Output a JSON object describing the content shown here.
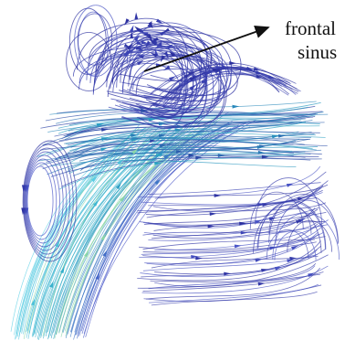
{
  "annotation": {
    "line1": "frontal",
    "line2": "sinus"
  },
  "colors": {
    "streamline_deep": "#2b2f9e",
    "streamline_mid": "#4a56c8",
    "streamline_teal": "#2aa6c4",
    "streamline_cyan": "#5fd0e6",
    "streamline_green": "#8ad6a8",
    "arrow": "#111111"
  }
}
